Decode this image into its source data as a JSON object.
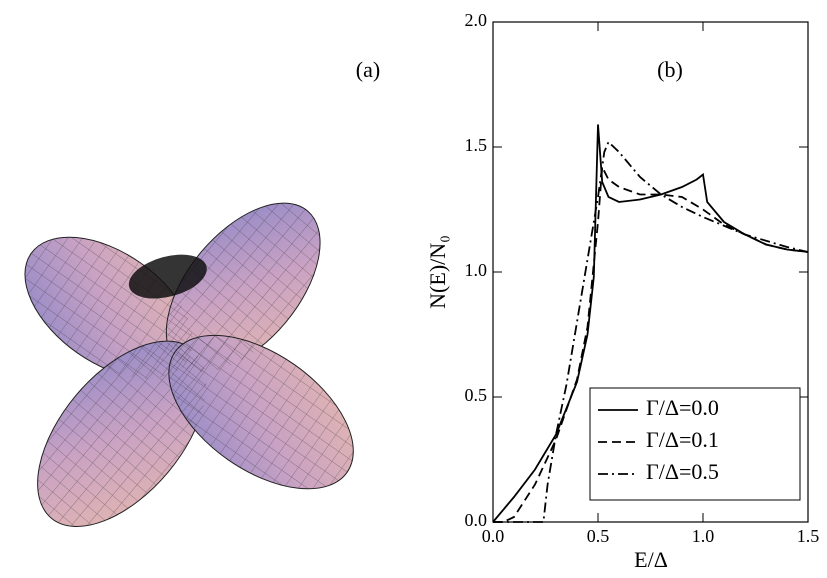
{
  "chart_data": {
    "type": "line",
    "annotations": [
      "(a)",
      "(b)"
    ],
    "xlabel": "E/Δ",
    "ylabel": "N(E)/N₀",
    "xlim": [
      0,
      1.5
    ],
    "ylim": [
      0,
      2
    ],
    "xticks": [
      {
        "value": 0,
        "label": "0.0"
      },
      {
        "value": 0.5,
        "label": "0.5"
      },
      {
        "value": 1,
        "label": "1.0"
      },
      {
        "value": 1.5,
        "label": "1.5"
      }
    ],
    "yticks": [
      {
        "value": 0,
        "label": "0.0"
      },
      {
        "value": 0.5,
        "label": "0.5"
      },
      {
        "value": 1,
        "label": "1.0"
      },
      {
        "value": 1.5,
        "label": "1.5"
      },
      {
        "value": 2,
        "label": "2.0"
      }
    ],
    "legend": "lower right",
    "series": [
      {
        "name": "Γ/Δ=0.0",
        "color": "#000000",
        "style": "solid",
        "x": [
          0,
          0.1,
          0.2,
          0.3,
          0.4,
          0.45,
          0.48,
          0.5,
          0.52,
          0.55,
          0.6,
          0.7,
          0.8,
          0.9,
          0.97,
          1.0,
          1.02,
          1.1,
          1.2,
          1.3,
          1.4,
          1.5
        ],
        "values": [
          0,
          0.1,
          0.21,
          0.35,
          0.56,
          0.75,
          0.98,
          1.59,
          1.36,
          1.3,
          1.28,
          1.29,
          1.31,
          1.34,
          1.37,
          1.39,
          1.28,
          1.2,
          1.15,
          1.11,
          1.09,
          1.08
        ]
      },
      {
        "name": "Γ/Δ=0.1",
        "color": "#000000",
        "style": "dashed",
        "x": [
          0,
          0.05,
          0.1,
          0.2,
          0.3,
          0.4,
          0.45,
          0.5,
          0.52,
          0.55,
          0.6,
          0.7,
          0.8,
          0.9,
          1.0,
          1.1,
          1.2,
          1.3,
          1.4,
          1.5
        ],
        "values": [
          0,
          0,
          0.02,
          0.15,
          0.33,
          0.57,
          0.78,
          1.2,
          1.42,
          1.37,
          1.34,
          1.31,
          1.31,
          1.3,
          1.25,
          1.19,
          1.15,
          1.11,
          1.09,
          1.08
        ]
      },
      {
        "name": "Γ/Δ=0.5",
        "color": "#000000",
        "style": "dashdot",
        "x": [
          0,
          0.2,
          0.24,
          0.26,
          0.3,
          0.35,
          0.4,
          0.45,
          0.5,
          0.53,
          0.55,
          0.6,
          0.7,
          0.8,
          0.9,
          1.0,
          1.2,
          1.4,
          1.5
        ],
        "values": [
          0,
          0,
          0,
          0.15,
          0.35,
          0.55,
          0.8,
          1.05,
          1.3,
          1.48,
          1.52,
          1.48,
          1.38,
          1.31,
          1.26,
          1.22,
          1.15,
          1.1,
          1.08
        ]
      }
    ]
  }
}
